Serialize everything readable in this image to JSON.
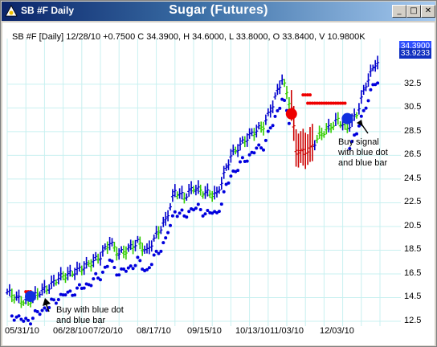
{
  "window": {
    "title": "SB #F Daily",
    "chart_title": "Sugar (Futures)",
    "controls": {
      "minimize": "_",
      "maximize": "□",
      "close": "✕"
    }
  },
  "chart_header": "SB #F [Daily] 12/28/10 +0.7500 C 34.3900, H 34.6000, L 33.8000, O 33.8400, V 10.9800K",
  "price_tags": {
    "upper": "34.3900",
    "lower": "33.9233"
  },
  "annotations": {
    "buy_left": [
      "Buy with blue dot",
      "and blue bar"
    ],
    "buy_right": [
      "Buy signal",
      "with blue dot",
      "and blue bar"
    ]
  },
  "colors": {
    "up_bar": "#0000cc",
    "neutral_bar": "#33cc00",
    "down_bar": "#cc0000",
    "grid": "#c8f0f0",
    "sell_dot": "#ee0000"
  },
  "chart_data": {
    "type": "bar",
    "title": "Sugar (Futures)",
    "ylim": [
      12.5,
      35
    ],
    "yticks": [
      "12.5",
      "14.5",
      "16.5",
      "18.5",
      "20.5",
      "22.5",
      "24.5",
      "26.5",
      "28.5",
      "30.5",
      "32.5"
    ],
    "xticks": [
      "05/31/10",
      "06/28/10",
      "07/20/10",
      "08/17/10",
      "09/15/10",
      "10/13/10",
      "11/03/10",
      "12/03/10"
    ],
    "grid": true,
    "anchors": [
      {
        "i": 0,
        "v": 15.0
      },
      {
        "i": 4,
        "v": 14.5
      },
      {
        "i": 7,
        "v": 14.2
      },
      {
        "i": 10,
        "v": 14.3
      },
      {
        "i": 14,
        "v": 15.0
      },
      {
        "i": 18,
        "v": 15.4
      },
      {
        "i": 22,
        "v": 16.2
      },
      {
        "i": 28,
        "v": 16.6
      },
      {
        "i": 34,
        "v": 17.2
      },
      {
        "i": 40,
        "v": 18.0
      },
      {
        "i": 44,
        "v": 19.2
      },
      {
        "i": 48,
        "v": 18.2
      },
      {
        "i": 52,
        "v": 18.6
      },
      {
        "i": 56,
        "v": 19.2
      },
      {
        "i": 60,
        "v": 18.4
      },
      {
        "i": 64,
        "v": 19.8
      },
      {
        "i": 68,
        "v": 21.0
      },
      {
        "i": 72,
        "v": 23.5
      },
      {
        "i": 76,
        "v": 23.0
      },
      {
        "i": 80,
        "v": 23.8
      },
      {
        "i": 84,
        "v": 23.4
      },
      {
        "i": 90,
        "v": 23.2
      },
      {
        "i": 96,
        "v": 26.5
      },
      {
        "i": 102,
        "v": 27.8
      },
      {
        "i": 106,
        "v": 28.5
      },
      {
        "i": 110,
        "v": 29.0
      },
      {
        "i": 114,
        "v": 30.8
      },
      {
        "i": 118,
        "v": 33.0
      },
      {
        "i": 122,
        "v": 30.5
      },
      {
        "i": 124,
        "v": 27.0
      },
      {
        "i": 127,
        "v": 26.8
      },
      {
        "i": 130,
        "v": 27.0
      },
      {
        "i": 134,
        "v": 28.2
      },
      {
        "i": 138,
        "v": 28.8
      },
      {
        "i": 142,
        "v": 29.5
      },
      {
        "i": 146,
        "v": 28.8
      },
      {
        "i": 150,
        "v": 30.0
      },
      {
        "i": 154,
        "v": 32.5
      },
      {
        "i": 158,
        "v": 34.3
      }
    ],
    "sell_signal": {
      "i": 122,
      "v": 30.0
    },
    "buy_signals": [
      {
        "i": 10,
        "v": 14.6
      },
      {
        "i": 146,
        "v": 29.6
      }
    ],
    "trailing_stop_red": [
      {
        "from": 8,
        "to": 10,
        "v": 15.0
      },
      {
        "from": 129,
        "to": 145,
        "v": 30.9
      },
      {
        "from": 127,
        "to": 130,
        "v": 31.6
      }
    ]
  }
}
